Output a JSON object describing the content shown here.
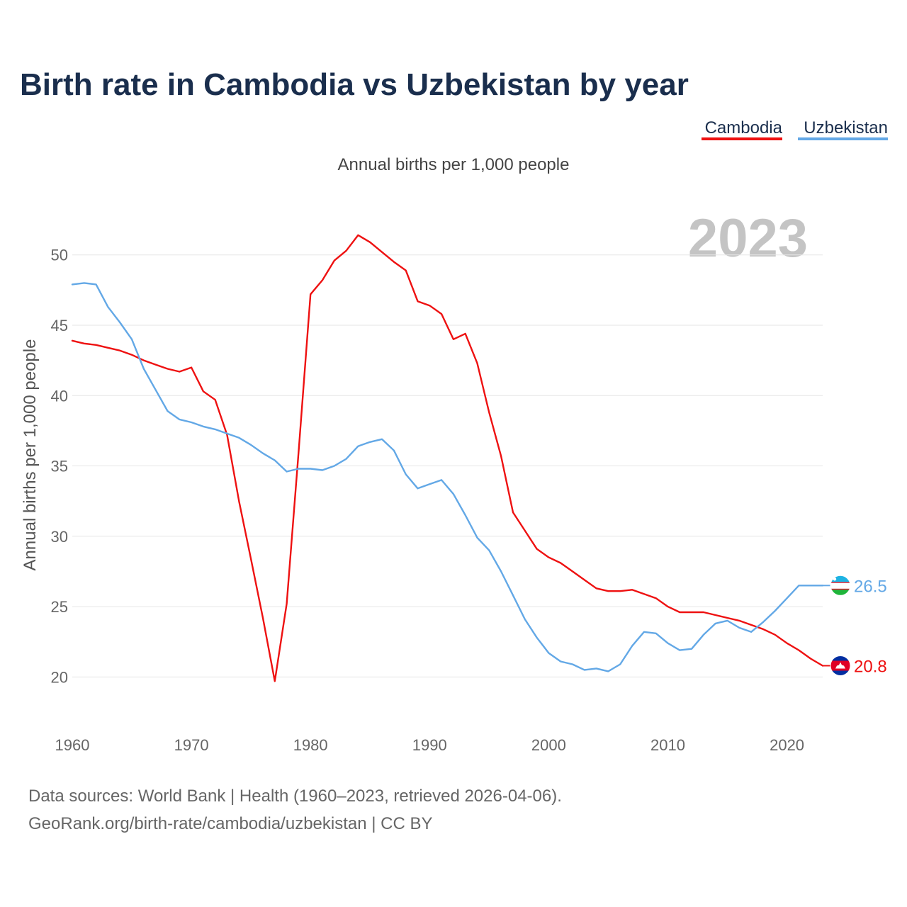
{
  "title": "Birth rate in Cambodia vs Uzbekistan by year",
  "subtitle": "Annual births per 1,000 people",
  "current_year": "2023",
  "source_line1": "Data sources: World Bank | Health (1960–2023, retrieved 2026-04-06).",
  "source_line2": "GeoRank.org/birth-rate/cambodia/uzbekistan | CC BY",
  "colors": {
    "cambodia": "#ee1111",
    "uzbekistan": "#63a8e6",
    "grid": "#e6e6e6",
    "title": "#1a2e4d"
  },
  "chart_data": {
    "type": "line",
    "title": "Birth rate in Cambodia vs Uzbekistan by year",
    "xlabel": "",
    "ylabel": "Annual births per 1,000 people",
    "xlim": [
      1960,
      2023
    ],
    "ylim": [
      17.5,
      52
    ],
    "yticks": [
      20,
      25,
      30,
      35,
      40,
      45,
      50
    ],
    "xticks": [
      1960,
      1970,
      1980,
      1990,
      2000,
      2010,
      2020
    ],
    "grid": true,
    "legend_position": "top-right",
    "x": [
      1960,
      1961,
      1962,
      1963,
      1964,
      1965,
      1966,
      1967,
      1968,
      1969,
      1970,
      1971,
      1972,
      1973,
      1974,
      1975,
      1976,
      1977,
      1978,
      1979,
      1980,
      1981,
      1982,
      1983,
      1984,
      1985,
      1986,
      1987,
      1988,
      1989,
      1990,
      1991,
      1992,
      1993,
      1994,
      1995,
      1996,
      1997,
      1998,
      1999,
      2000,
      2001,
      2002,
      2003,
      2004,
      2005,
      2006,
      2007,
      2008,
      2009,
      2010,
      2011,
      2012,
      2013,
      2014,
      2015,
      2016,
      2017,
      2018,
      2019,
      2020,
      2021,
      2022,
      2023
    ],
    "series": [
      {
        "name": "Cambodia",
        "end_label": "20.8",
        "values": [
          43.9,
          43.7,
          43.6,
          43.4,
          43.2,
          42.9,
          42.5,
          42.2,
          41.9,
          41.7,
          42.0,
          40.3,
          39.7,
          37.2,
          32.5,
          28.4,
          24.2,
          19.7,
          25.2,
          36.0,
          47.2,
          48.2,
          49.6,
          50.3,
          51.4,
          50.9,
          50.2,
          49.5,
          48.9,
          46.7,
          46.4,
          45.8,
          44.0,
          44.4,
          42.3,
          38.8,
          35.7,
          31.7,
          30.4,
          29.1,
          28.5,
          28.1,
          27.5,
          26.9,
          26.3,
          26.1,
          26.1,
          26.2,
          25.9,
          25.6,
          25.0,
          24.6,
          24.6,
          24.6,
          24.4,
          24.2,
          24.0,
          23.7,
          23.4,
          23.0,
          22.4,
          21.9,
          21.3,
          20.8
        ]
      },
      {
        "name": "Uzbekistan",
        "end_label": "26.5",
        "values": [
          47.9,
          48.0,
          47.9,
          46.3,
          45.2,
          44.0,
          41.9,
          40.4,
          38.9,
          38.3,
          38.1,
          37.8,
          37.6,
          37.3,
          37.0,
          36.5,
          35.9,
          35.4,
          34.6,
          34.8,
          34.8,
          34.7,
          35.0,
          35.5,
          36.4,
          36.7,
          36.9,
          36.1,
          34.4,
          33.4,
          33.7,
          34.0,
          33.0,
          31.5,
          29.9,
          29.0,
          27.5,
          25.8,
          24.1,
          22.8,
          21.7,
          21.1,
          20.9,
          20.5,
          20.6,
          20.4,
          20.9,
          22.2,
          23.2,
          23.1,
          22.4,
          21.9,
          22.0,
          23.0,
          23.8,
          24.0,
          23.5,
          23.2,
          23.9,
          24.7,
          25.6,
          26.5,
          26.5,
          26.5
        ]
      }
    ]
  }
}
